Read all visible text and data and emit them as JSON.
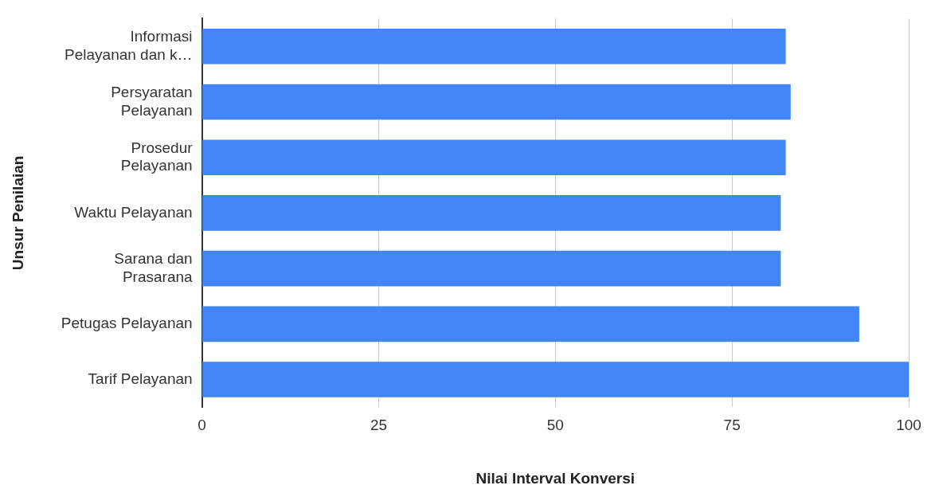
{
  "chart_data": {
    "type": "bar",
    "orientation": "horizontal",
    "xlabel": "Nilai Interval Konversi",
    "ylabel": "Unsur Penilaian",
    "categories": [
      "Informasi Pelayanan dan k…",
      "Persyaratan Pelayanan",
      "Prosedur Pelayanan",
      "Waktu Pelayanan",
      "Sarana dan Prasarana",
      "Petugas Pelayanan",
      "Tarif Pelayanan"
    ],
    "values": [
      82.6,
      83.3,
      82.6,
      81.9,
      81.9,
      93,
      100
    ],
    "color": "#4285f4",
    "xlim": [
      0,
      100
    ],
    "xticks": [
      0,
      25,
      50,
      75,
      100
    ],
    "grid": "x",
    "legend": false
  }
}
